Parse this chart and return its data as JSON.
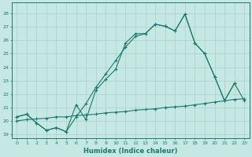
{
  "xlabel": "Humidex (Indice chaleur)",
  "xlim": [
    -0.5,
    23.5
  ],
  "ylim": [
    18.7,
    28.8
  ],
  "xticks": [
    0,
    1,
    2,
    3,
    4,
    5,
    6,
    7,
    8,
    9,
    10,
    11,
    12,
    13,
    14,
    15,
    16,
    17,
    18,
    19,
    20,
    21,
    22,
    23
  ],
  "yticks": [
    19,
    20,
    21,
    22,
    23,
    24,
    25,
    26,
    27,
    28
  ],
  "bg_color": "#c5e8e4",
  "line_color": "#1a7a6a",
  "grid_color": "#a8d0cc",
  "line1_x": [
    0,
    1,
    2,
    3,
    4,
    5,
    6,
    7,
    8,
    9,
    10,
    11,
    12,
    13,
    14,
    15,
    16,
    17,
    18,
    19,
    20,
    21,
    22
  ],
  "line1_y": [
    20.3,
    20.5,
    19.85,
    19.3,
    19.5,
    19.2,
    21.2,
    20.1,
    22.3,
    23.1,
    23.85,
    25.8,
    26.5,
    26.5,
    27.2,
    27.05,
    26.7,
    27.95,
    25.8,
    25.0,
    23.3,
    21.5,
    22.8
  ],
  "line2_x": [
    0,
    1,
    2,
    3,
    4,
    5,
    6,
    7,
    8,
    9,
    10,
    11,
    12,
    13,
    14,
    15,
    16,
    17,
    18,
    19,
    20,
    21,
    22,
    23
  ],
  "line2_y": [
    20.3,
    20.5,
    19.85,
    19.3,
    19.5,
    19.2,
    20.3,
    21.3,
    22.5,
    23.5,
    24.5,
    25.5,
    26.3,
    26.5,
    27.2,
    27.05,
    26.7,
    27.95,
    25.8,
    25.0,
    23.3,
    21.5,
    22.8,
    21.5
  ],
  "line3_x": [
    0,
    1,
    2,
    3,
    4,
    5,
    6,
    7,
    8,
    9,
    10,
    11,
    12,
    13,
    14,
    15,
    16,
    17,
    18,
    19,
    20,
    21,
    22,
    23
  ],
  "line3_y": [
    20.0,
    20.1,
    20.15,
    20.2,
    20.3,
    20.3,
    20.4,
    20.45,
    20.5,
    20.6,
    20.65,
    20.7,
    20.8,
    20.85,
    20.9,
    21.0,
    21.05,
    21.1,
    21.2,
    21.3,
    21.4,
    21.5,
    21.6,
    21.65
  ]
}
